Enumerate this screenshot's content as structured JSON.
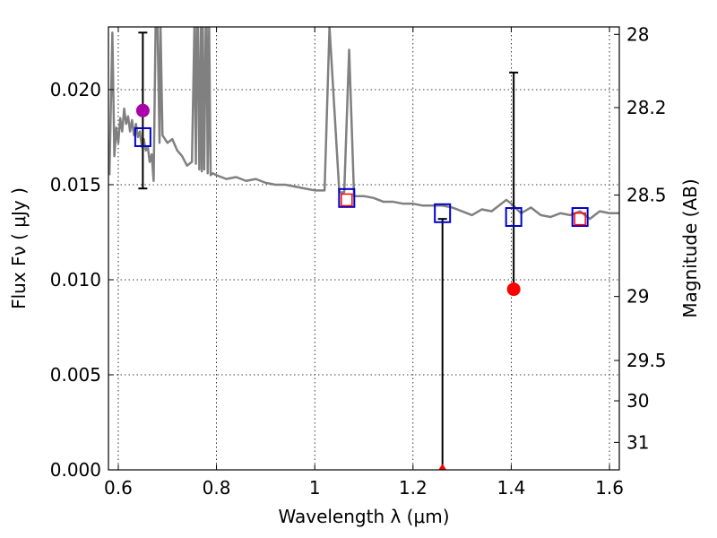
{
  "chart_data": {
    "type": "scatter",
    "title": "",
    "xlabel": "Wavelength  λ (μm)",
    "ylabel": "Flux  Fν  ( μJy )",
    "y2label": "Magnitude (AB)",
    "xlim": [
      0.58,
      1.62
    ],
    "ylim": [
      0.0,
      0.0233
    ],
    "grid": true,
    "x_ticks": [
      0.6,
      0.8,
      1.0,
      1.2,
      1.4,
      1.6
    ],
    "x_tick_labels": [
      "0.6",
      "0.8",
      "1",
      "1.2",
      "1.4",
      "1.6"
    ],
    "y_ticks": [
      0.0,
      0.005,
      0.01,
      0.015,
      0.02
    ],
    "y_tick_labels": [
      "0.000",
      "0.005",
      "0.010",
      "0.015",
      "0.020"
    ],
    "y2_tick_labels": [
      "28",
      "28.2",
      "28.5",
      "29",
      "29.5",
      "30",
      "31"
    ],
    "series": [
      {
        "kind": "line",
        "color": "#808080",
        "x": [
          0.582,
          0.588,
          0.592,
          0.596,
          0.6,
          0.604,
          0.608,
          0.612,
          0.616,
          0.62,
          0.624,
          0.628,
          0.632,
          0.636,
          0.64,
          0.644,
          0.648,
          0.652,
          0.656,
          0.66,
          0.664,
          0.668,
          0.672,
          0.676,
          0.68,
          0.684,
          0.686,
          0.69,
          0.7,
          0.71,
          0.72,
          0.73,
          0.74,
          0.75,
          0.755,
          0.758,
          0.76,
          0.762,
          0.765,
          0.768,
          0.77,
          0.772,
          0.775,
          0.778,
          0.78,
          0.782,
          0.785,
          0.788,
          0.792,
          0.8,
          0.82,
          0.84,
          0.86,
          0.88,
          0.9,
          0.92,
          0.94,
          0.96,
          0.98,
          1.0,
          1.02,
          1.03,
          1.05,
          1.06,
          1.07,
          1.08,
          1.1,
          1.12,
          1.14,
          1.16,
          1.18,
          1.2,
          1.22,
          1.24,
          1.26,
          1.28,
          1.3,
          1.32,
          1.34,
          1.36,
          1.38,
          1.39,
          1.4,
          1.42,
          1.44,
          1.46,
          1.48,
          1.5,
          1.52,
          1.54,
          1.56,
          1.58,
          1.6,
          1.62
        ],
        "y": [
          0.0155,
          0.023,
          0.0165,
          0.018,
          0.0172,
          0.0185,
          0.0178,
          0.019,
          0.0182,
          0.0186,
          0.0178,
          0.0184,
          0.0176,
          0.0182,
          0.0175,
          0.0178,
          0.017,
          0.0174,
          0.0168,
          0.017,
          0.0162,
          0.0166,
          0.0152,
          0.0233,
          0.0233,
          0.0172,
          0.0233,
          0.0176,
          0.0172,
          0.0174,
          0.0168,
          0.0165,
          0.016,
          0.0162,
          0.0233,
          0.0161,
          0.0233,
          0.0233,
          0.0158,
          0.0233,
          0.0157,
          0.0233,
          0.0158,
          0.0233,
          0.0233,
          0.0156,
          0.0233,
          0.0155,
          0.0156,
          0.0155,
          0.0153,
          0.0154,
          0.0152,
          0.0153,
          0.0151,
          0.015,
          0.015,
          0.0149,
          0.0148,
          0.0147,
          0.0147,
          0.0233,
          0.0146,
          0.0146,
          0.0221,
          0.0144,
          0.0144,
          0.0143,
          0.0141,
          0.0141,
          0.014,
          0.014,
          0.0139,
          0.0139,
          0.0139,
          0.0138,
          0.0136,
          0.0134,
          0.0137,
          0.0136,
          0.014,
          0.0142,
          0.014,
          0.0135,
          0.0138,
          0.0134,
          0.0133,
          0.0135,
          0.0134,
          0.0136,
          0.0132,
          0.0136,
          0.0135,
          0.0135
        ]
      },
      {
        "kind": "model_photometry",
        "marker": "square",
        "color": "#0000cc",
        "x": [
          0.65,
          1.065,
          1.26,
          1.405,
          1.54
        ],
        "y": [
          0.0175,
          0.0143,
          0.0135,
          0.0133,
          0.0133
        ]
      },
      {
        "kind": "observed",
        "marker": "circle",
        "x": [
          0.65,
          1.065,
          1.26,
          1.405,
          1.54
        ],
        "y": [
          0.0189,
          0.0142,
          0.0,
          0.0095,
          0.0132
        ],
        "colors": [
          "#aa00aa",
          "#ff0000",
          "#ff0000",
          "#ff0000",
          "#ff0000"
        ],
        "shapes": [
          "circle",
          "square",
          "triangle",
          "circle",
          "square"
        ],
        "error_low": [
          0.0041,
          null,
          0.0,
          null,
          null
        ],
        "error_high": [
          0.0041,
          null,
          0.0132,
          0.0114,
          null
        ]
      }
    ]
  }
}
